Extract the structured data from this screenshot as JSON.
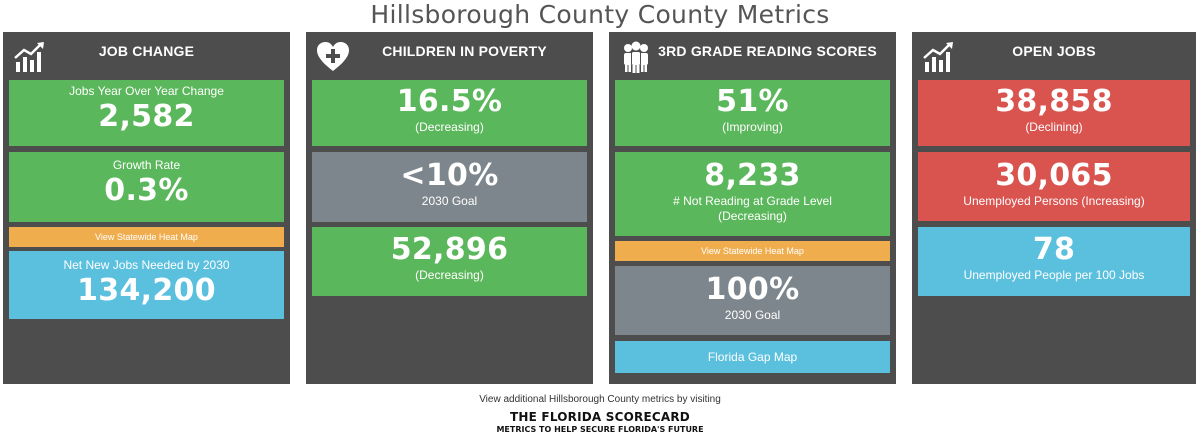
{
  "page": {
    "title": "Hillsborough County County Metrics"
  },
  "panels": [
    {
      "title": "JOB CHANGE",
      "icon": "chart-growth-icon",
      "tiles": [
        {
          "label_top": "Jobs Year Over Year Change",
          "value": "2,582",
          "color": "#5bb75b"
        },
        {
          "label_top": "Growth Rate",
          "value": "0.3%",
          "color": "#5bb75b"
        },
        {
          "label_top": "Net New Jobs Needed by 2030",
          "value": "134,200",
          "color": "#5bc0de"
        }
      ],
      "link": "View Statewide Heat Map"
    },
    {
      "title": "CHILDREN IN POVERTY",
      "icon": "heart-plus-icon",
      "tiles": [
        {
          "value": "16.5%",
          "label": "(Decreasing)",
          "color": "#5bb75b"
        },
        {
          "value": "<10%",
          "label": "2030 Goal",
          "color": "#7d868c"
        },
        {
          "value": "52,896",
          "label": "(Decreasing)",
          "color": "#5bb75b"
        }
      ]
    },
    {
      "title": "3RD GRADE READING SCORES",
      "icon": "people-group-icon",
      "tiles": [
        {
          "value": "51%",
          "label": "(Improving)",
          "color": "#5bb75b"
        },
        {
          "value": "8,233",
          "label": "# Not Reading at Grade Level",
          "label2": "(Decreasing)",
          "color": "#5bb75b"
        },
        {
          "value": "100%",
          "label": "2030 Goal",
          "color": "#7d868c"
        }
      ],
      "link": "View Statewide Heat Map",
      "link2": "Florida Gap Map"
    },
    {
      "title": "OPEN JOBS",
      "icon": "chart-growth-icon",
      "tiles": [
        {
          "value": "38,858",
          "label": "(Declining)",
          "color": "#d9534f"
        },
        {
          "value": "30,065",
          "label": "Unemployed Persons (Increasing)",
          "color": "#d9534f"
        },
        {
          "value": "78",
          "label": "Unemployed People per 100 Jobs",
          "color": "#5bc0de"
        }
      ]
    }
  ],
  "footer": {
    "note": "View additional Hillsborough County metrics by visiting",
    "brand": "THE FLORIDA SCORECARD",
    "brand_sub": "METRICS TO HELP SECURE FLORIDA'S FUTURE"
  },
  "colors": {
    "panel_bg": "#4d4d4d",
    "green": "#5bb75b",
    "gray": "#7d868c",
    "blue": "#5bc0de",
    "red": "#d9534f",
    "orange": "#f0ad4e"
  }
}
